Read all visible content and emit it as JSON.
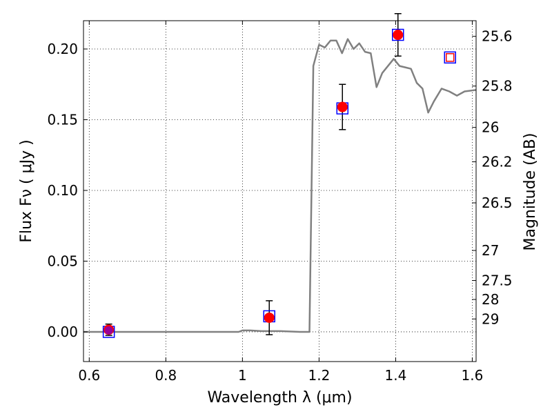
{
  "chart_data": {
    "type": "scatter",
    "title": "",
    "xlabel": "Wavelength  λ (μm)",
    "ylabel": "Flux  Fν  ( μJy )",
    "y2label": "Magnitude (AB)",
    "xlim": [
      0.585,
      1.61
    ],
    "ylim": [
      -0.021,
      0.22
    ],
    "grid": true,
    "legend": "none",
    "x_ticks": [
      {
        "value": 0.6,
        "label": "0.6"
      },
      {
        "value": 0.8,
        "label": "0.8"
      },
      {
        "value": 1.0,
        "label": "1"
      },
      {
        "value": 1.2,
        "label": "1.2"
      },
      {
        "value": 1.4,
        "label": "1.4"
      },
      {
        "value": 1.6,
        "label": "1.6"
      }
    ],
    "y_ticks": [
      {
        "value": 0.0,
        "label": "0.00"
      },
      {
        "value": 0.05,
        "label": "0.05"
      },
      {
        "value": 0.1,
        "label": "0.10"
      },
      {
        "value": 0.15,
        "label": "0.15"
      },
      {
        "value": 0.2,
        "label": "0.20"
      }
    ],
    "y2_ticks": [
      {
        "value": 25.6,
        "label": "25.6"
      },
      {
        "value": 25.8,
        "label": "25.8"
      },
      {
        "value": 26.0,
        "label": "26"
      },
      {
        "value": 26.2,
        "label": "26.2"
      },
      {
        "value": 26.5,
        "label": "26.5"
      },
      {
        "value": 27.0,
        "label": "27"
      },
      {
        "value": 27.5,
        "label": "27.5"
      },
      {
        "value": 28.0,
        "label": "28"
      },
      {
        "value": 29.0,
        "label": "29"
      }
    ],
    "model_spectrum": {
      "color": "#808080",
      "x": [
        0.585,
        0.99,
        1.0,
        1.02,
        1.05,
        1.1,
        1.15,
        1.175,
        1.185,
        1.2,
        1.215,
        1.23,
        1.245,
        1.26,
        1.275,
        1.29,
        1.305,
        1.32,
        1.335,
        1.35,
        1.365,
        1.38,
        1.395,
        1.41,
        1.425,
        1.44,
        1.455,
        1.47,
        1.485,
        1.5,
        1.52,
        1.54,
        1.56,
        1.58,
        1.61
      ],
      "y": [
        0.0,
        0.0,
        0.001,
        0.001,
        0.0005,
        0.0005,
        0.0,
        0.0,
        0.188,
        0.203,
        0.201,
        0.206,
        0.206,
        0.197,
        0.207,
        0.2,
        0.204,
        0.198,
        0.197,
        0.173,
        0.183,
        0.188,
        0.193,
        0.188,
        0.187,
        0.186,
        0.176,
        0.172,
        0.155,
        0.163,
        0.172,
        0.17,
        0.167,
        0.17,
        0.171
      ]
    },
    "model_photometry": {
      "color": "#0000ff",
      "x": [
        0.651,
        1.07,
        1.261,
        1.406,
        1.542
      ],
      "y": [
        0.0,
        0.011,
        0.158,
        0.21,
        0.194
      ]
    },
    "observed": {
      "color": "#ff0000",
      "x": [
        0.651,
        1.07,
        1.261,
        1.406
      ],
      "y": [
        0.0015,
        0.01,
        0.159,
        0.21
      ],
      "err": [
        0.004,
        0.012,
        0.016,
        0.015
      ]
    },
    "upper_limit": {
      "color": "#ff0000",
      "x": [
        1.542
      ],
      "y": [
        0.194
      ]
    },
    "magenta_point": {
      "color": "#990099",
      "x": [
        0.651
      ],
      "y": [
        0.001
      ]
    }
  }
}
